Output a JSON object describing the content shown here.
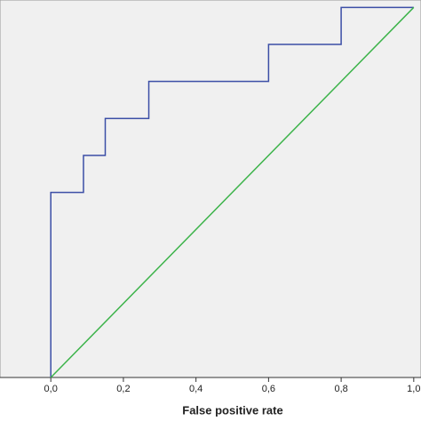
{
  "chart_data": {
    "type": "line",
    "x_label": "False positive rate",
    "xlim": [
      -0.14,
      1.02
    ],
    "ylim": [
      0,
      1.02
    ],
    "xticks": [
      {
        "value": 0,
        "label": "0,0"
      },
      {
        "value": 0.2,
        "label": "0,2"
      },
      {
        "value": 0.4,
        "label": "0,4"
      },
      {
        "value": 0.6,
        "label": "0,6"
      },
      {
        "value": 0.8,
        "label": "0,8"
      },
      {
        "value": 1,
        "label": "1,0"
      }
    ],
    "background": "#f0f0f0",
    "series": [
      {
        "color": "#3b4ea6",
        "x": [
          0,
          0,
          0.09,
          0.09,
          0.15,
          0.15,
          0.27,
          0.27,
          0.6,
          0.6,
          0.8,
          0.8,
          1
        ],
        "values": [
          0,
          0.5,
          0.5,
          0.6,
          0.6,
          0.7,
          0.7,
          0.8,
          0.8,
          0.9,
          0.9,
          1,
          1
        ]
      },
      {
        "color": "#3cb34a",
        "x": [
          0,
          1
        ],
        "values": [
          0,
          1
        ]
      }
    ]
  }
}
